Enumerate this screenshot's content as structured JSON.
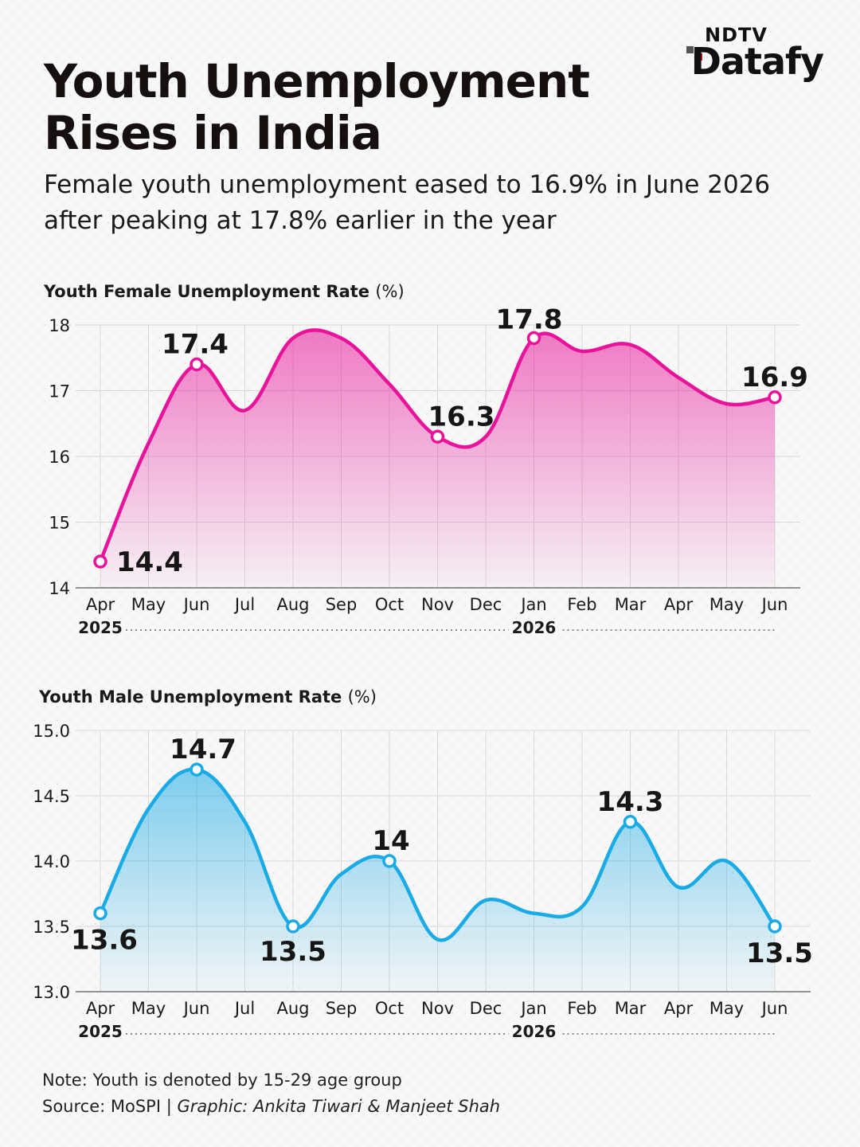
{
  "brand": {
    "top": "NDTV",
    "main": "Datafy"
  },
  "title": "Youth Unemployment Rises in India",
  "subtitle": "Female youth unemployment eased to 16.9% in June 2026 after peaking at 17.8% earlier in the year",
  "colors": {
    "female": "#e8139a",
    "male": "#1aabe6",
    "grid": "#d8d8d8",
    "text": "#161616"
  },
  "chart_data": [
    {
      "type": "area",
      "title": "Youth Female Unemployment Rate",
      "title_unit": "(%)",
      "categories": [
        "Apr",
        "May",
        "Jun",
        "Jul",
        "Aug",
        "Sep",
        "Oct",
        "Nov",
        "Dec",
        "Jan",
        "Feb",
        "Mar",
        "Apr",
        "May",
        "Jun"
      ],
      "years": [
        {
          "label": "2025",
          "at": "Apr"
        },
        {
          "label": "2026",
          "at": "Jan"
        }
      ],
      "series": [
        {
          "values": [
            14.4,
            16.2,
            17.4,
            16.7,
            17.8,
            17.8,
            17.1,
            16.3,
            16.3,
            17.8,
            17.6,
            17.7,
            17.2,
            16.8,
            16.9
          ]
        }
      ],
      "labels": [
        {
          "index": 0,
          "text": "14.4"
        },
        {
          "index": 2,
          "text": "17.4"
        },
        {
          "index": 7,
          "text": "16.3"
        },
        {
          "index": 9,
          "text": "17.8"
        },
        {
          "index": 14,
          "text": "16.9"
        }
      ],
      "ylim": [
        14,
        18
      ],
      "yticks": [
        "14",
        "15",
        "16",
        "17",
        "18"
      ],
      "grid": true
    },
    {
      "type": "area",
      "title": "Youth Male Unemployment Rate",
      "title_unit": "(%)",
      "categories": [
        "Apr",
        "May",
        "Jun",
        "Jul",
        "Aug",
        "Sep",
        "Oct",
        "Nov",
        "Dec",
        "Jan",
        "Feb",
        "Mar",
        "Apr",
        "May",
        "Jun"
      ],
      "years": [
        {
          "label": "2025",
          "at": "Apr"
        },
        {
          "label": "2026",
          "at": "Jan"
        }
      ],
      "series": [
        {
          "values": [
            13.6,
            14.4,
            14.7,
            14.3,
            13.5,
            13.9,
            14.0,
            13.4,
            13.7,
            13.6,
            13.65,
            14.3,
            13.8,
            14.0,
            13.5
          ]
        }
      ],
      "labels": [
        {
          "index": 0,
          "text": "13.6"
        },
        {
          "index": 2,
          "text": "14.7"
        },
        {
          "index": 4,
          "text": "13.5"
        },
        {
          "index": 6,
          "text": "14"
        },
        {
          "index": 11,
          "text": "14.3"
        },
        {
          "index": 14,
          "text": "13.5"
        }
      ],
      "ylim": [
        13.0,
        15.0
      ],
      "yticks": [
        "13.0",
        "13.5",
        "14.0",
        "14.5",
        "15.0"
      ],
      "grid": true
    }
  ],
  "note": "Note: Youth is denoted by 15-29 age group",
  "source": {
    "prefix": "Source: MoSPI | ",
    "graphic": "Graphic: Ankita Tiwari & Manjeet Shah"
  }
}
